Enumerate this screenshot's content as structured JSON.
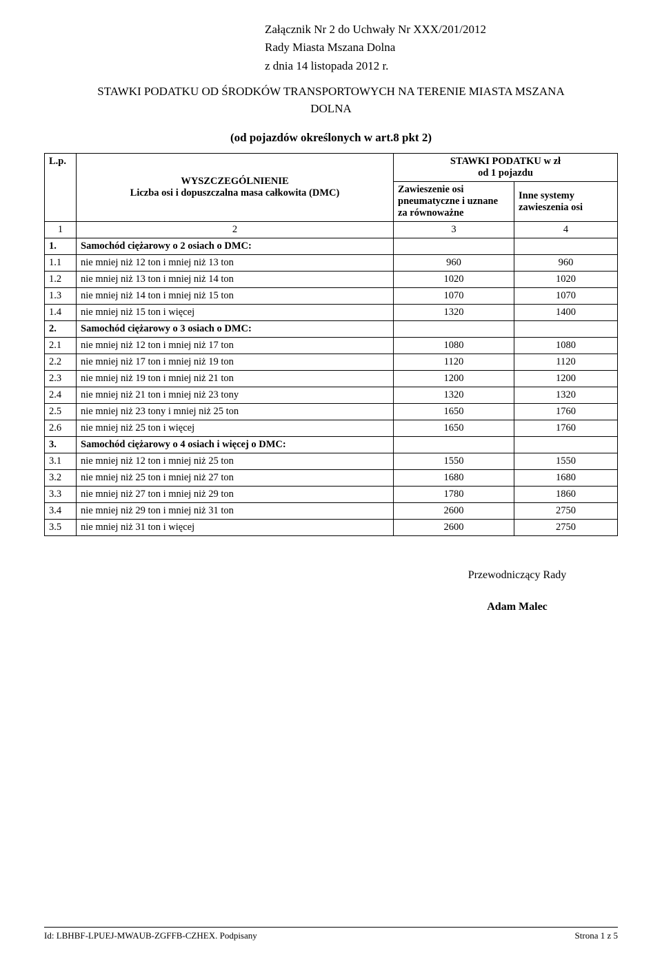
{
  "header": {
    "line1": "Załącznik Nr 2 do Uchwały Nr XXX/201/2012",
    "line2": "Rady Miasta Mszana Dolna",
    "line3": "z dnia 14 listopada 2012 r."
  },
  "title": {
    "line1": "STAWKI PODATKU OD ŚRODKÓW TRANSPORTOWYCH NA TERENIE MIASTA MSZANA",
    "line2": "DOLNA"
  },
  "subtitle": "(od pojazdów określonych w art.8 pkt 2)",
  "table": {
    "head": {
      "lp": "L.p.",
      "wysz_line1": "WYSZCZEGÓLNIENIE",
      "wysz_line2": "Liczba osi i dopuszczalna masa całkowita (DMC)",
      "stawki_line1": "STAWKI PODATKU w zł",
      "stawki_line2": "od 1 pojazdu",
      "col3_line1": "Zawieszenie osi pneumatyczne i uznane",
      "col3_line2": "za równoważne",
      "col4_line1": "Inne systemy",
      "col4_line2": "zawieszenia osi",
      "n1": "1",
      "n2": "2",
      "n3": "3",
      "n4": "4"
    },
    "rows": [
      {
        "lp": "1.",
        "desc": "Samochód ciężarowy o 2 osiach o DMC:",
        "v1": "",
        "v2": "",
        "section": true
      },
      {
        "lp": "1.1",
        "desc": "nie mniej niż 12 ton i mniej niż 13 ton",
        "v1": "960",
        "v2": "960"
      },
      {
        "lp": "1.2",
        "desc": "nie mniej niż 13 ton i mniej niż 14 ton",
        "v1": "1020",
        "v2": "1020"
      },
      {
        "lp": "1.3",
        "desc": "nie mniej niż 14 ton i mniej niż 15 ton",
        "v1": "1070",
        "v2": "1070"
      },
      {
        "lp": "1.4",
        "desc": "nie mniej niż 15 ton i więcej",
        "v1": "1320",
        "v2": "1400"
      },
      {
        "lp": "2.",
        "desc": "Samochód ciężarowy o 3 osiach o DMC:",
        "v1": "",
        "v2": "",
        "section": true
      },
      {
        "lp": "2.1",
        "desc": "nie mniej niż 12 ton i mniej niż 17 ton",
        "v1": "1080",
        "v2": "1080"
      },
      {
        "lp": "2.2",
        "desc": "nie mniej niż 17 ton i mniej niż 19 ton",
        "v1": "1120",
        "v2": "1120"
      },
      {
        "lp": "2.3",
        "desc": "nie mniej niż 19 ton i mniej niż 21 ton",
        "v1": "1200",
        "v2": "1200"
      },
      {
        "lp": "2.4",
        "desc": "nie mniej niż 21 ton i mniej niż 23 tony",
        "v1": "1320",
        "v2": "1320"
      },
      {
        "lp": "2.5",
        "desc": "nie mniej niż 23 tony i mniej niż 25 ton",
        "v1": "1650",
        "v2": "1760"
      },
      {
        "lp": "2.6",
        "desc": "nie mniej niż 25 ton i więcej",
        "v1": "1650",
        "v2": "1760"
      },
      {
        "lp": "3.",
        "desc": "Samochód ciężarowy o 4 osiach i więcej o DMC:",
        "v1": "",
        "v2": "",
        "section": true
      },
      {
        "lp": "3.1",
        "desc": "nie mniej niż 12 ton i mniej niż 25 ton",
        "v1": "1550",
        "v2": "1550"
      },
      {
        "lp": "3.2",
        "desc": "nie mniej niż 25 ton i mniej niż 27 ton",
        "v1": "1680",
        "v2": "1680"
      },
      {
        "lp": "3.3",
        "desc": "nie mniej niż 27 ton i mniej niż 29 ton",
        "v1": "1780",
        "v2": "1860"
      },
      {
        "lp": "3.4",
        "desc": "nie mniej niż 29 ton i mniej niż 31 ton",
        "v1": "2600",
        "v2": "2750"
      },
      {
        "lp": "3.5",
        "desc": "nie mniej niż 31 ton i więcej",
        "v1": "2600",
        "v2": "2750"
      }
    ]
  },
  "signature": {
    "title": "Przewodniczący Rady",
    "name": "Adam Malec"
  },
  "footer": {
    "left": "Id: LBHBF-LPUEJ-MWAUB-ZGFFB-CZHEX. Podpisany",
    "right": "Strona 1 z 5"
  }
}
